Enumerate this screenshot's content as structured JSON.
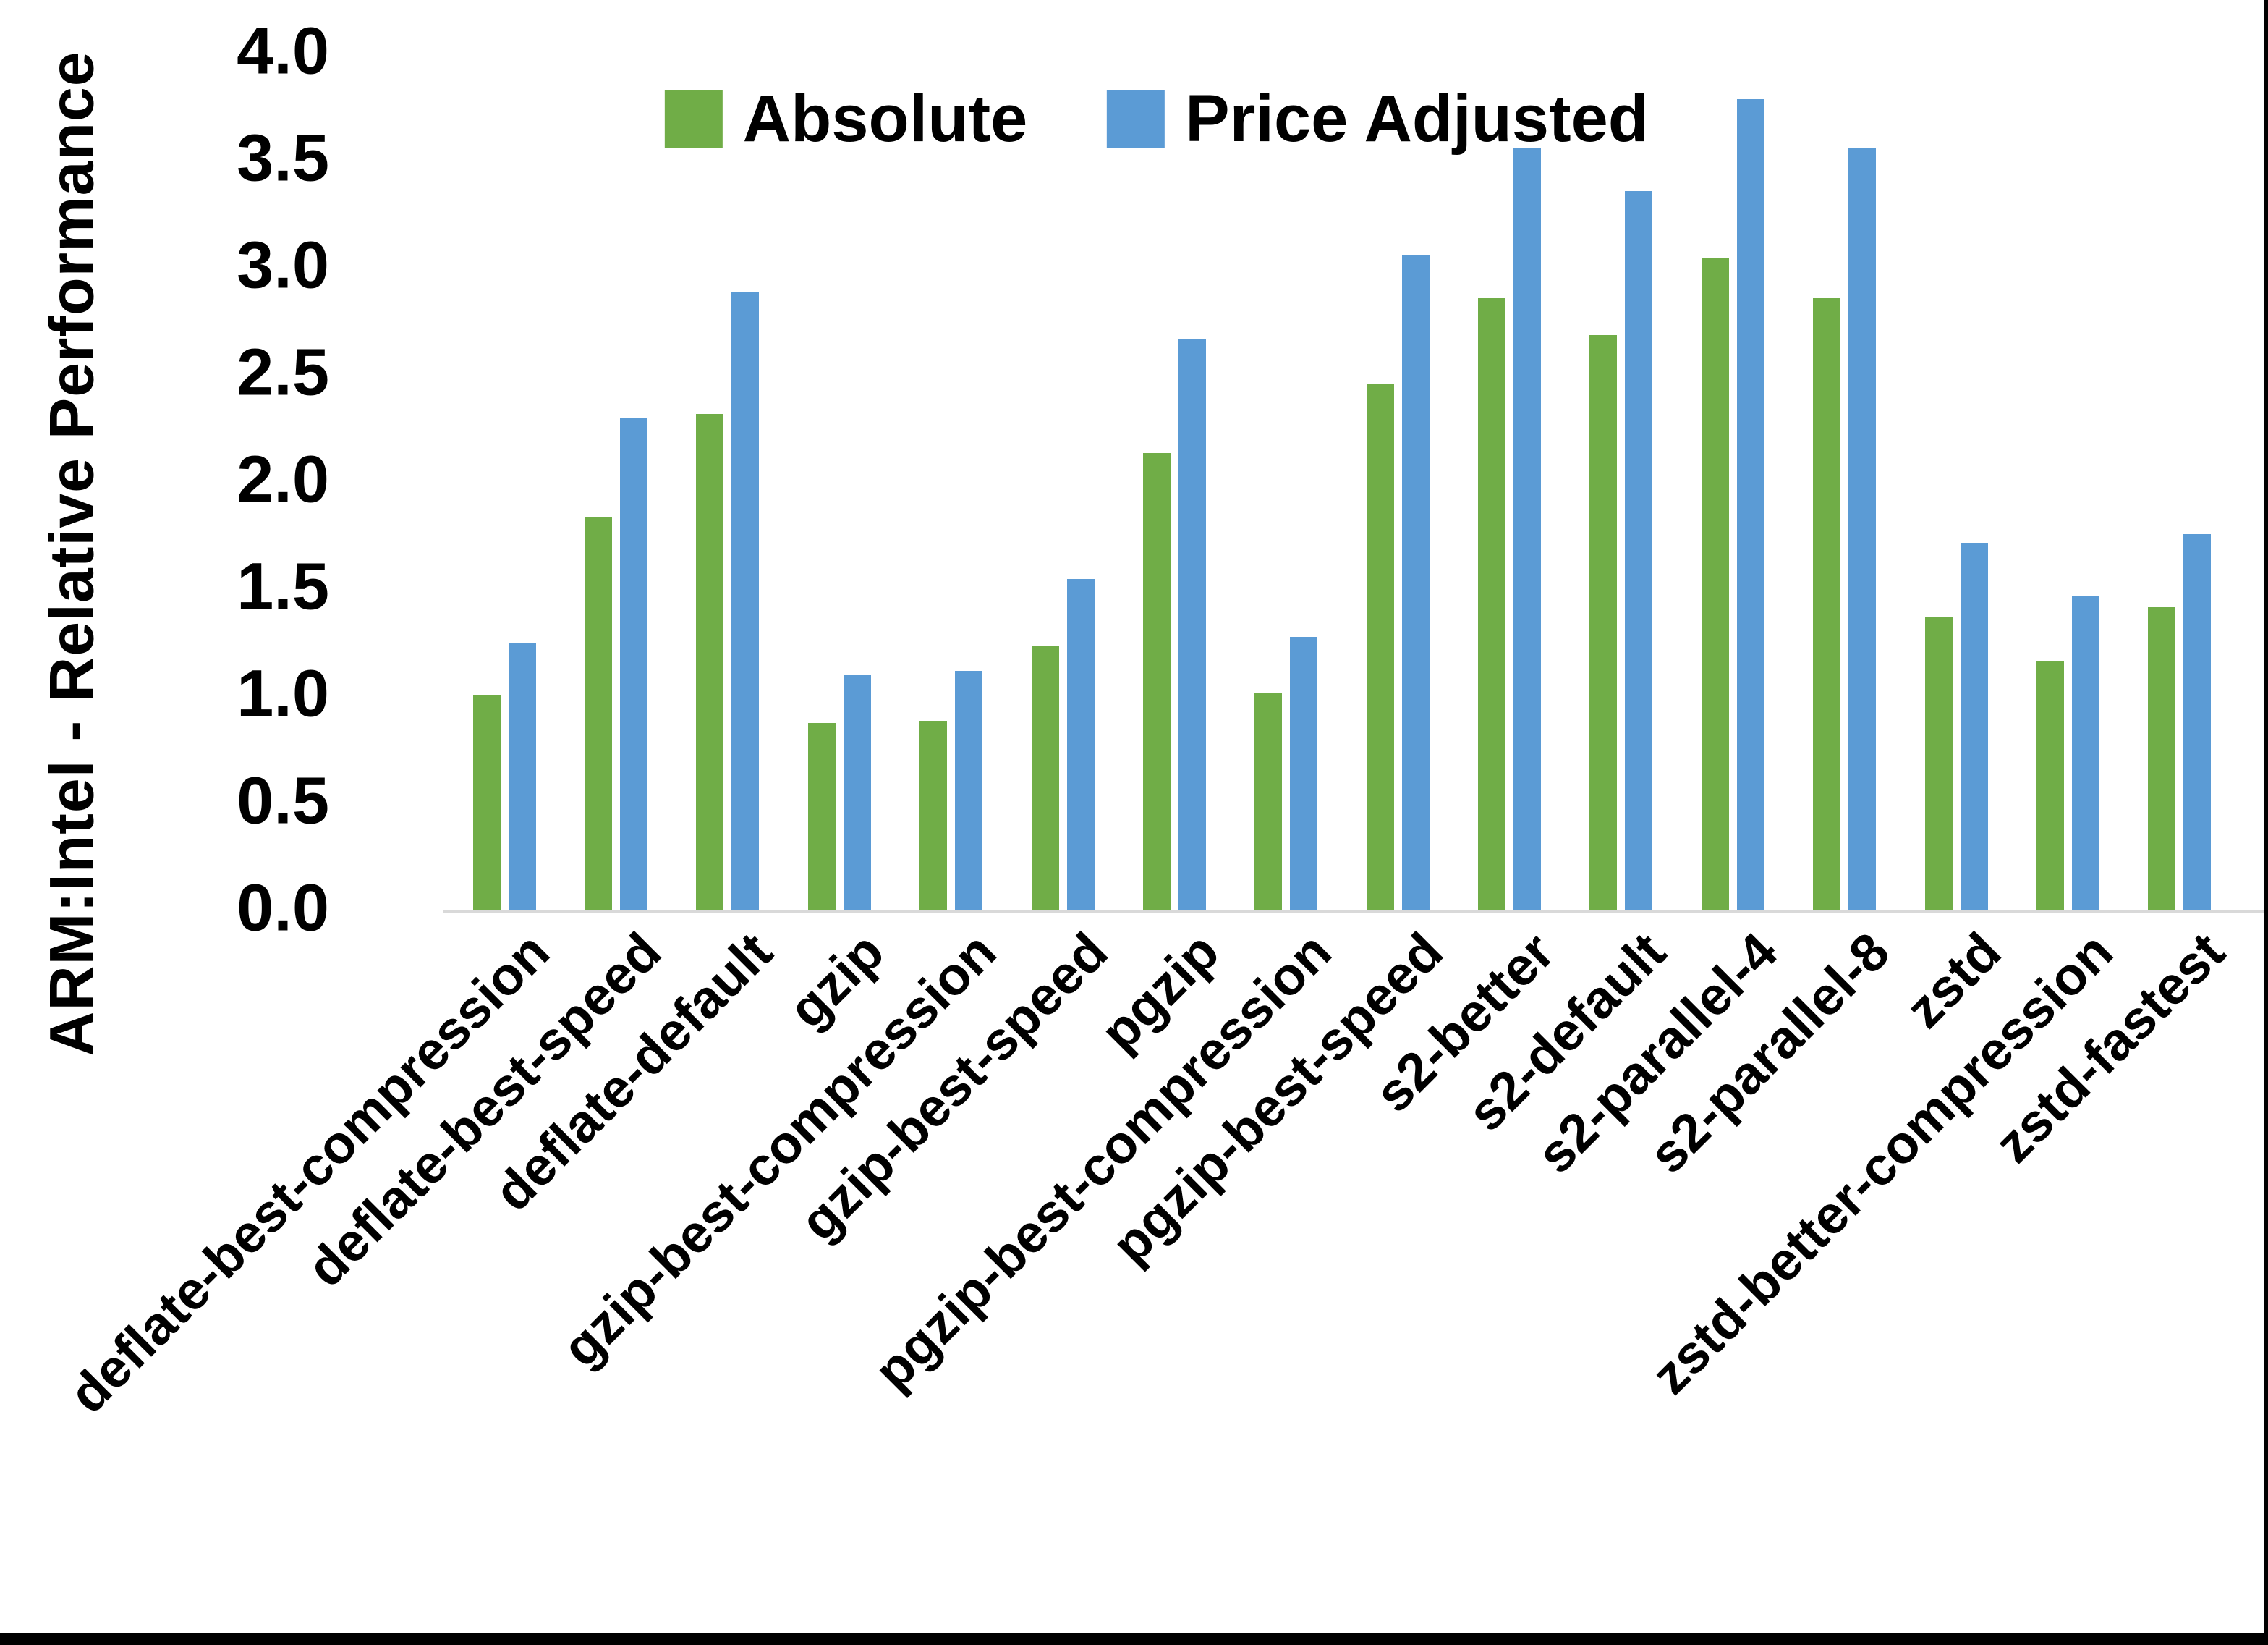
{
  "chart_data": {
    "type": "bar",
    "title": "",
    "xlabel": "",
    "ylabel": "ARM:Intel - Relative Performance",
    "ylim": [
      0,
      4
    ],
    "ytick_step": 0.5,
    "yticks": [
      "0.0",
      "0.5",
      "1.0",
      "1.5",
      "2.0",
      "2.5",
      "3.0",
      "3.5",
      "4.0"
    ],
    "grid": false,
    "legend_position": "top-center",
    "background": "#ffffff",
    "categories": [
      "deflate-best-compression",
      "deflate-best-speed",
      "deflate-default",
      "gzip",
      "gzip-best-compression",
      "gzip-best-speed",
      "pgzip",
      "pgzip-best-compression",
      "pgzip-best-speed",
      "s2-better",
      "s2-default",
      "s2-parallel-4",
      "s2-parallel-8",
      "zstd",
      "zstd-better-compression",
      "zstd-fastest"
    ],
    "series": [
      {
        "name": "Absolute",
        "color": "#70AD47",
        "values": [
          1.01,
          1.84,
          2.32,
          0.88,
          0.89,
          1.24,
          2.14,
          1.02,
          2.46,
          2.86,
          2.69,
          3.05,
          2.86,
          1.37,
          1.17,
          1.42
        ]
      },
      {
        "name": "Price Adjusted",
        "color": "#5B9BD5",
        "values": [
          1.25,
          2.3,
          2.89,
          1.1,
          1.12,
          1.55,
          2.67,
          1.28,
          3.06,
          3.56,
          3.36,
          3.79,
          3.56,
          1.72,
          1.47,
          1.76
        ]
      }
    ]
  }
}
